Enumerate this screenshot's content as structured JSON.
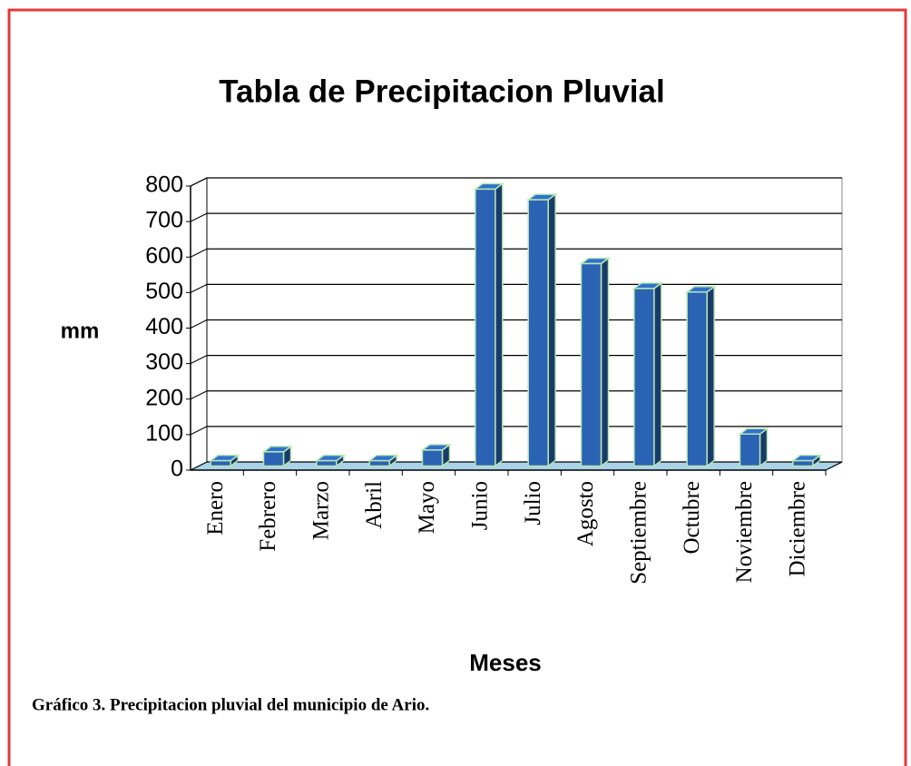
{
  "chart_data": {
    "type": "bar3d",
    "title": "Tabla de Precipitacion Pluvial",
    "x_label": "Meses",
    "y_label": "mm",
    "caption": "Gráfico 3. Precipitacion pluvial del municipio de Ario.",
    "categories": [
      "Enero",
      "Febrero",
      "Marzo",
      "Abril",
      "Mayo",
      "Junio",
      "Julio",
      "Agosto",
      "Septiembre",
      "Octubre",
      "Noviembre",
      "Diciembre"
    ],
    "values": [
      15,
      40,
      15,
      15,
      45,
      780,
      750,
      570,
      500,
      490,
      90,
      15
    ],
    "color": "#2a62b4",
    "ylim": [
      0,
      800
    ],
    "yticks": [
      0,
      100,
      200,
      300,
      400,
      500,
      600,
      700,
      800
    ],
    "grid": true
  }
}
